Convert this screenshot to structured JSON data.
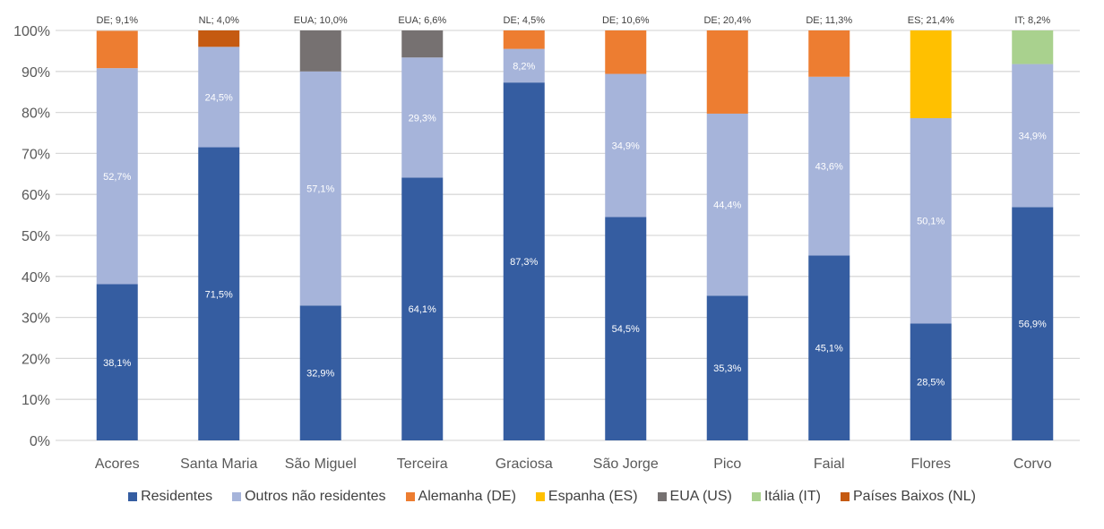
{
  "chart_data": {
    "type": "bar",
    "stacked": true,
    "percent": true,
    "categories": [
      "Acores",
      "Santa Maria",
      "São Miguel",
      "Terceira",
      "Graciosa",
      "São Jorge",
      "Pico",
      "Faial",
      "Flores",
      "Corvo"
    ],
    "series": [
      {
        "name": "Residentes",
        "color": "#355DA1",
        "values": [
          38.1,
          71.5,
          32.9,
          64.1,
          87.3,
          54.5,
          35.3,
          45.1,
          28.5,
          56.9
        ],
        "labels": [
          "38,1%",
          "71,5%",
          "32,9%",
          "64,1%",
          "87,3%",
          "54,5%",
          "35,3%",
          "45,1%",
          "28,5%",
          "56,9%"
        ]
      },
      {
        "name": "Outros não residentes",
        "color": "#A6B4DA",
        "values": [
          52.7,
          24.5,
          57.1,
          29.3,
          8.2,
          34.9,
          44.4,
          43.6,
          50.1,
          34.9
        ],
        "labels": [
          "52,7%",
          "24,5%",
          "57,1%",
          "29,3%",
          "8,2%",
          "34,9%",
          "44,4%",
          "43,6%",
          "50,1%",
          "34,9%"
        ]
      },
      {
        "name": "Alemanha (DE)",
        "color": "#ED7D31",
        "values": [
          9.1,
          null,
          null,
          null,
          4.5,
          10.6,
          20.4,
          11.3,
          null,
          null
        ]
      },
      {
        "name": "Espanha (ES)",
        "color": "#FFC000",
        "values": [
          null,
          null,
          null,
          null,
          null,
          null,
          null,
          null,
          21.4,
          null
        ]
      },
      {
        "name": "EUA (US)",
        "color": "#767171",
        "values": [
          null,
          null,
          10.0,
          6.6,
          null,
          null,
          null,
          null,
          null,
          null
        ]
      },
      {
        "name": "Itália (IT)",
        "color": "#A9D18E",
        "values": [
          null,
          null,
          null,
          null,
          null,
          null,
          null,
          null,
          null,
          8.2
        ]
      },
      {
        "name": "Países Baixos (NL)",
        "color": "#C55A11",
        "values": [
          null,
          4.0,
          null,
          null,
          null,
          null,
          null,
          null,
          null,
          null
        ]
      }
    ],
    "top_labels": [
      "DE; 9,1%",
      "NL; 4,0%",
      "EUA; 10,0%",
      "EUA; 6,6%",
      "DE; 4,5%",
      "DE; 10,6%",
      "DE; 20,4%",
      "DE; 11,3%",
      "ES; 21,4%",
      "IT; 8,2%"
    ],
    "yticks": [
      "0%",
      "10%",
      "20%",
      "30%",
      "40%",
      "50%",
      "60%",
      "70%",
      "80%",
      "90%",
      "100%"
    ],
    "ylim": [
      0,
      100
    ],
    "grid": true,
    "legend_position": "bottom",
    "title": "",
    "xlabel": "",
    "ylabel": ""
  }
}
